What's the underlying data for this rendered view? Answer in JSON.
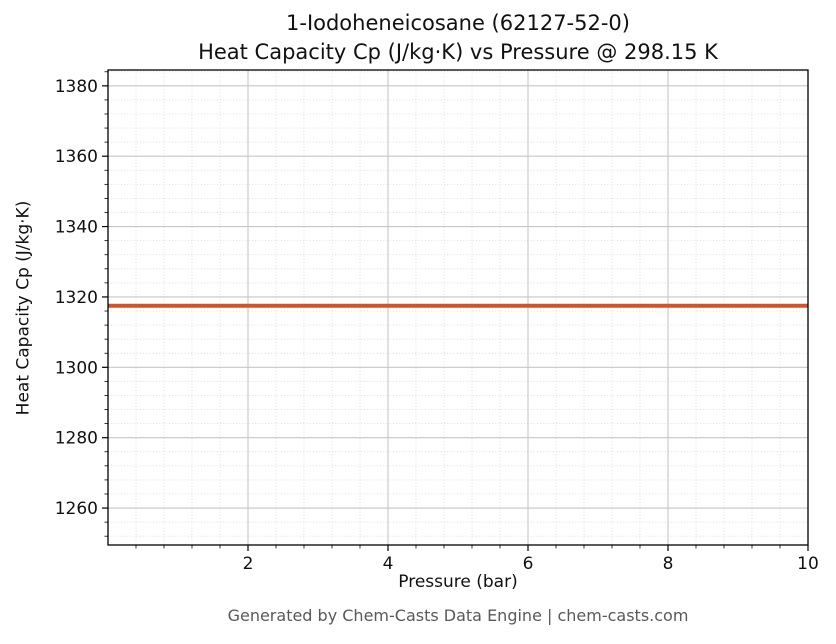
{
  "title": {
    "line1": "1-Iodoheneicosane (62127-52-0)",
    "line2": "Heat Capacity Cp (J/kg·K) vs Pressure @ 298.15 K"
  },
  "footer_caption": "Generated by Chem-Casts Data Engine | chem-casts.com",
  "chart_data": {
    "type": "line",
    "title": "1-Iodoheneicosane (62127-52-0)\nHeat Capacity Cp (J/kg·K) vs Pressure @ 298.15 K",
    "xlabel": "Pressure (bar)",
    "ylabel": "Heat Capacity Cp (J/kg·K)",
    "series": [
      {
        "name": "Heat Capacity Cp",
        "x": [
          0,
          1,
          2,
          3,
          4,
          5,
          6,
          7,
          8,
          9,
          10
        ],
        "y": [
          1317.5,
          1317.5,
          1317.5,
          1317.5,
          1317.5,
          1317.5,
          1317.5,
          1317.5,
          1317.5,
          1317.5,
          1317.5
        ],
        "color": "#d2522d",
        "linewidth": 4
      }
    ],
    "xlim": [
      0,
      10
    ],
    "ylim": [
      1249.5,
      1384.5
    ],
    "xticks": [
      2,
      4,
      6,
      8,
      10
    ],
    "yticks": [
      1260,
      1280,
      1300,
      1320,
      1340,
      1360,
      1380
    ],
    "x_major_step": 2,
    "y_major_step": 20,
    "x_minor_step": 0.4,
    "y_minor_step": 4,
    "grid": true,
    "legend_position": "none",
    "colors": {
      "line": "#d2522d",
      "grid_major": "#c7c7c7",
      "grid_minor": "#dadada",
      "spine": "#000000",
      "footer_text": "#595959"
    }
  }
}
